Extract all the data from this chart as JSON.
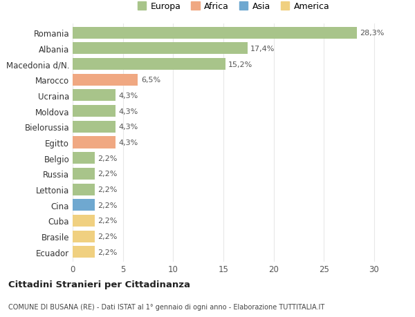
{
  "categories": [
    "Romania",
    "Albania",
    "Macedonia d/N.",
    "Marocco",
    "Ucraina",
    "Moldova",
    "Bielorussia",
    "Egitto",
    "Belgio",
    "Russia",
    "Lettonia",
    "Cina",
    "Cuba",
    "Brasile",
    "Ecuador"
  ],
  "values": [
    28.3,
    17.4,
    15.2,
    6.5,
    4.3,
    4.3,
    4.3,
    4.3,
    2.2,
    2.2,
    2.2,
    2.2,
    2.2,
    2.2,
    2.2
  ],
  "labels": [
    "28,3%",
    "17,4%",
    "15,2%",
    "6,5%",
    "4,3%",
    "4,3%",
    "4,3%",
    "4,3%",
    "2,2%",
    "2,2%",
    "2,2%",
    "2,2%",
    "2,2%",
    "2,2%",
    "2,2%"
  ],
  "continents": [
    "Europa",
    "Europa",
    "Europa",
    "Africa",
    "Europa",
    "Europa",
    "Europa",
    "Africa",
    "Europa",
    "Europa",
    "Europa",
    "Asia",
    "America",
    "America",
    "America"
  ],
  "colors": {
    "Europa": "#a8c48a",
    "Africa": "#f0a882",
    "Asia": "#6fa8d0",
    "America": "#f0d080"
  },
  "legend_colors": {
    "Europa": "#a8c48a",
    "Africa": "#f0a882",
    "Asia": "#6fa8d0",
    "America": "#f0d080"
  },
  "xlim": [
    0,
    32
  ],
  "xticks": [
    0,
    5,
    10,
    15,
    20,
    25,
    30
  ],
  "background_color": "#ffffff",
  "grid_color": "#e8e8e8",
  "title1": "Cittadini Stranieri per Cittadinanza",
  "title2": "COMUNE DI BUSANA (RE) - Dati ISTAT al 1° gennaio di ogni anno - Elaborazione TUTTITALIA.IT",
  "bar_height": 0.75,
  "legend_entries": [
    "Europa",
    "Africa",
    "Asia",
    "America"
  ]
}
